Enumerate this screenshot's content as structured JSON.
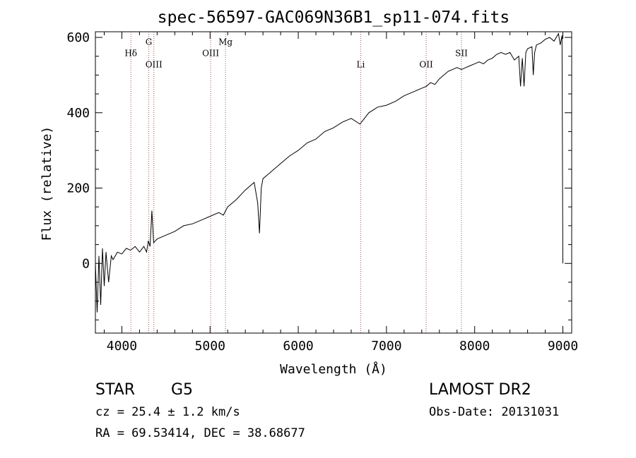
{
  "chart_data": {
    "type": "line",
    "title": "spec-56597-GAC069N36B1_sp11-074.fits",
    "xlabel": "Wavelength (Å)",
    "ylabel": "Flux (relative)",
    "xlim": [
      3700,
      9100
    ],
    "ylim": [
      -185,
      615
    ],
    "xticks": [
      4000,
      5000,
      6000,
      7000,
      8000,
      9000
    ],
    "yticks": [
      0,
      200,
      400,
      600
    ],
    "x": [
      3700,
      3720,
      3740,
      3760,
      3780,
      3800,
      3820,
      3850,
      3880,
      3900,
      3950,
      4000,
      4050,
      4100,
      4150,
      4200,
      4250,
      4280,
      4300,
      4320,
      4340,
      4360,
      4380,
      4400,
      4500,
      4600,
      4700,
      4800,
      4900,
      5000,
      5100,
      5150,
      5200,
      5300,
      5400,
      5500,
      5540,
      5560,
      5580,
      5600,
      5700,
      5800,
      5900,
      6000,
      6100,
      6200,
      6300,
      6400,
      6500,
      6600,
      6700,
      6800,
      6900,
      7000,
      7100,
      7200,
      7300,
      7400,
      7450,
      7500,
      7550,
      7600,
      7650,
      7700,
      7750,
      7800,
      7850,
      7900,
      7950,
      8000,
      8050,
      8100,
      8150,
      8200,
      8250,
      8300,
      8350,
      8400,
      8450,
      8500,
      8520,
      8540,
      8560,
      8580,
      8600,
      8650,
      8664,
      8680,
      8700,
      8750,
      8800,
      8850,
      8900,
      8950,
      8970,
      8990,
      9000
    ],
    "y": [
      0,
      -130,
      20,
      -110,
      40,
      -60,
      30,
      -50,
      20,
      10,
      30,
      25,
      40,
      35,
      45,
      30,
      45,
      30,
      60,
      45,
      140,
      55,
      60,
      65,
      75,
      85,
      100,
      105,
      115,
      125,
      135,
      128,
      150,
      170,
      195,
      215,
      160,
      80,
      200,
      225,
      245,
      265,
      285,
      300,
      320,
      330,
      350,
      360,
      375,
      385,
      370,
      400,
      415,
      420,
      430,
      445,
      455,
      465,
      470,
      480,
      475,
      490,
      500,
      510,
      515,
      520,
      515,
      520,
      525,
      530,
      535,
      530,
      540,
      545,
      555,
      560,
      555,
      560,
      540,
      550,
      470,
      545,
      470,
      560,
      570,
      575,
      500,
      560,
      580,
      585,
      595,
      600,
      590,
      610,
      580,
      605,
      0
    ],
    "lines": [
      {
        "name": "Hδ",
        "wavelength": 4102,
        "label_y": 550
      },
      {
        "name": "G",
        "wavelength": 4305,
        "label_y": 580
      },
      {
        "name": "OIII",
        "wavelength": 4363,
        "label_y": 520
      },
      {
        "name": "OIII",
        "wavelength": 5007,
        "label_y": 550
      },
      {
        "name": "Mg",
        "wavelength": 5175,
        "label_y": 580
      },
      {
        "name": "Li",
        "wavelength": 6708,
        "label_y": 520
      },
      {
        "name": "OII",
        "wavelength": 7450,
        "label_y": 520
      },
      {
        "name": "SII",
        "wavelength": 7850,
        "label_y": 550
      }
    ],
    "colors": {
      "spectrum": "#000000",
      "lines": "#a05050",
      "axes": "#000000"
    }
  },
  "info": {
    "object_class": "STAR",
    "subclass": "G5",
    "survey": "LAMOST DR2",
    "redshift": "cz =  25.4 ± 1.2 km/s",
    "obs_date": "Obs-Date: 20131031",
    "coords": "RA =  69.53414, DEC =  38.68677"
  }
}
